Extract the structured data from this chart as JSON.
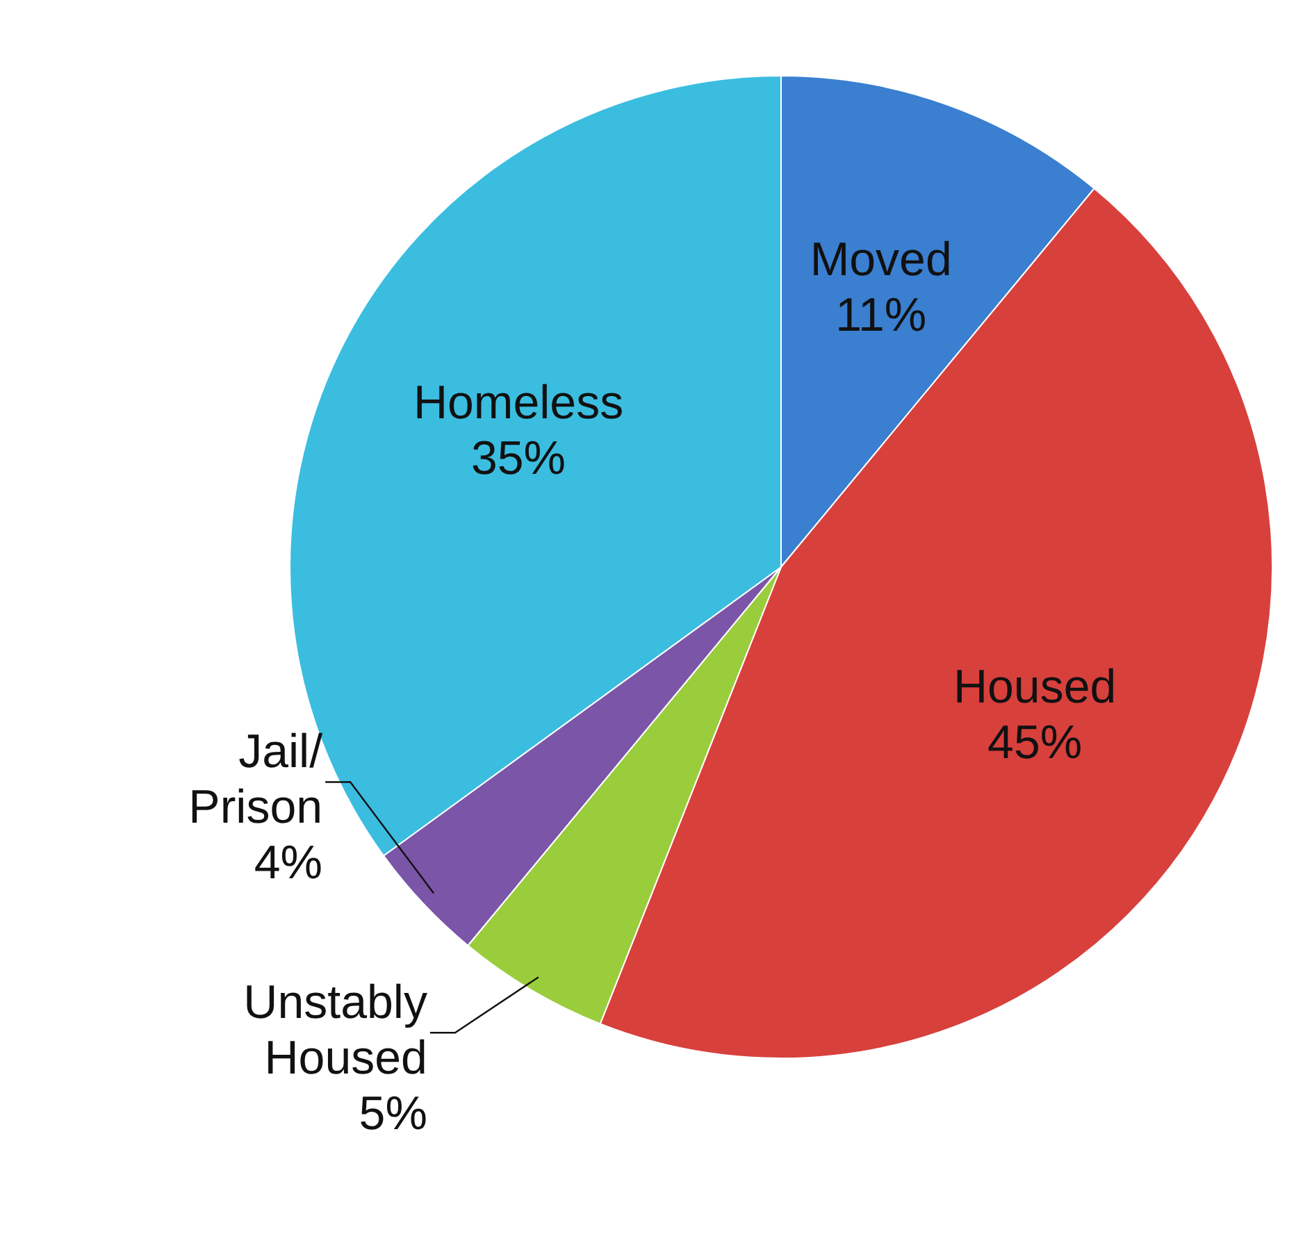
{
  "chart_data": {
    "type": "pie",
    "categories": [
      "Moved",
      "Housed",
      "Unstably Housed",
      "Jail/ Prison",
      "Homeless"
    ],
    "values": [
      11,
      45,
      5,
      4,
      35
    ],
    "colors": [
      "#3a7fd0",
      "#d8403c",
      "#9acd3c",
      "#7b55a8",
      "#3bbde0"
    ],
    "value_labels": [
      "11%",
      "45%",
      "5%",
      "4%",
      "35%"
    ],
    "legend": false
  }
}
